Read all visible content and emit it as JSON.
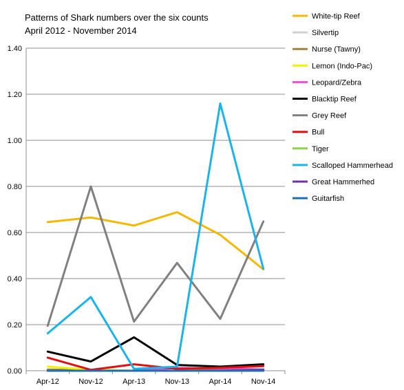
{
  "chart_data": {
    "type": "line",
    "title_lines": [
      "Patterns of Shark numbers over the six counts",
      "April 2012  - November 2014"
    ],
    "xlabel": "",
    "ylabel": "",
    "categories": [
      "Apr-12",
      "Nov-12",
      "Apr-13",
      "Nov-13",
      "Apr-14",
      "Nov-14"
    ],
    "ylim": [
      0,
      1.4
    ],
    "yticks": [
      "0.00",
      "0.20",
      "0.40",
      "0.60",
      "0.80",
      "1.00",
      "1.20",
      "1.40"
    ],
    "grid": true,
    "legend_position": "right",
    "series": [
      {
        "name": "White-tip Reef",
        "color": "#F5B800",
        "values": [
          0.645,
          0.665,
          0.63,
          0.688,
          0.59,
          0.44
        ]
      },
      {
        "name": "Silvertip",
        "color": "#D0D0D0",
        "values": [
          0.0,
          0.0,
          0.0,
          0.0,
          0.0,
          0.0
        ]
      },
      {
        "name": "Nurse (Tawny)",
        "color": "#9E8440",
        "values": [
          0.005,
          0.002,
          0.0,
          0.0,
          0.003,
          0.003
        ]
      },
      {
        "name": "Lemon (Indo-Pac)",
        "color": "#F2F200",
        "values": [
          0.018,
          0.004,
          0.0,
          0.0,
          0.0,
          0.0
        ]
      },
      {
        "name": "Leopard/Zebra",
        "color": "#E84FD8",
        "values": [
          0.0,
          0.0,
          0.0,
          0.012,
          0.01,
          0.005
        ]
      },
      {
        "name": "Blacktip Reef",
        "color": "#000000",
        "values": [
          0.083,
          0.04,
          0.145,
          0.025,
          0.018,
          0.028
        ]
      },
      {
        "name": "Grey Reef",
        "color": "#808080",
        "values": [
          0.195,
          0.8,
          0.213,
          0.468,
          0.225,
          0.648
        ]
      },
      {
        "name": "Bull",
        "color": "#E01010",
        "values": [
          0.057,
          0.004,
          0.028,
          0.008,
          0.013,
          0.02
        ]
      },
      {
        "name": "Tiger",
        "color": "#8ED04A",
        "values": [
          0.0,
          0.0,
          0.0,
          0.0,
          0.0,
          0.0
        ]
      },
      {
        "name": "Scalloped Hammerhead",
        "color": "#1CB4E8",
        "values": [
          0.162,
          0.32,
          0.008,
          0.018,
          1.16,
          0.442
        ]
      },
      {
        "name": "Great Hammerhed",
        "color": "#7030A0",
        "values": [
          0.0,
          0.0,
          0.0,
          0.0,
          0.0,
          0.005
        ]
      },
      {
        "name": "Guitarfish",
        "color": "#1F6FB0",
        "values": [
          0.0,
          0.0,
          0.0,
          0.0,
          0.0,
          0.0
        ]
      }
    ]
  }
}
